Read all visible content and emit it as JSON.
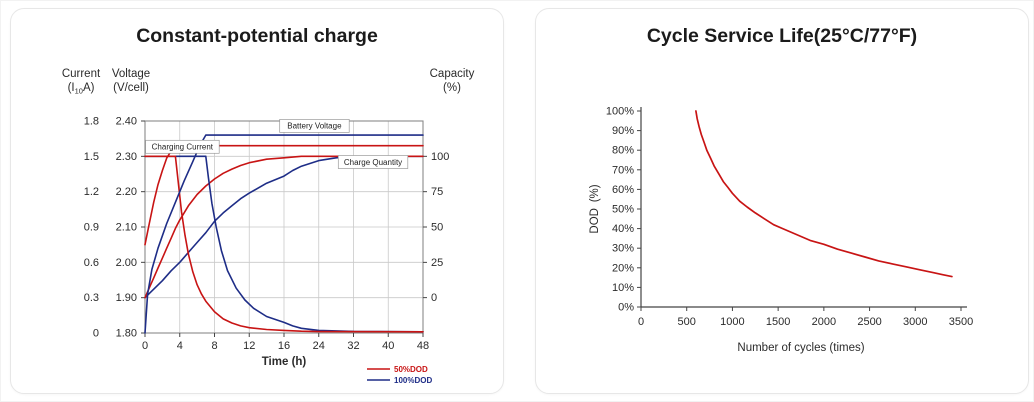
{
  "colors": {
    "red": "#c81414",
    "blue": "#1e2d87",
    "grid": "#c9c9c9",
    "frame": "#8a8a8a",
    "axis": "#444444",
    "tick_text": "#2b2b2b",
    "title_text": "#1b1b1b",
    "annotation_text": "#222222",
    "card_border": "#e7e7e7"
  },
  "chart_data": [
    {
      "type": "line",
      "title": "Constant-potential charge",
      "xlabel": "Time (h)",
      "x_scale": "piecewise-equal-spacing-between-ticks",
      "x_ticks": [
        0,
        4,
        8,
        12,
        16,
        24,
        32,
        40,
        48
      ],
      "x_tick_labels": [
        "0",
        "4",
        "8",
        "12",
        "16",
        "24",
        "32",
        "40",
        "48"
      ],
      "axes": {
        "current": {
          "name_line1": "Current",
          "name_line2_pre": "(I",
          "name_line2_sub": "10",
          "name_line2_post": "A)",
          "tick_labels": [
            "1.8",
            "1.5",
            "1.2",
            "0.9",
            "0.6",
            "0.3",
            "0"
          ],
          "min": 0,
          "max": 1.8,
          "frac_min": 0,
          "frac_max": 1
        },
        "voltage": {
          "name_line1": "Voltage",
          "name_line2": "(V/cell)",
          "tick_labels": [
            "2.40",
            "2.30",
            "2.20",
            "2.10",
            "2.00",
            "1.90",
            "1.80"
          ],
          "min": 1.8,
          "max": 2.4,
          "frac_min": 0,
          "frac_max": 1
        },
        "capacity": {
          "name_line1": "Capacity",
          "name_line2": "(%)",
          "tick_labels": [
            "100",
            "75",
            "50",
            "25",
            "0"
          ],
          "min": 0,
          "max": 100,
          "frac_min": 0.1667,
          "frac_max": 0.8333
        }
      },
      "series": [
        {
          "name": "100%DOD charge quantity",
          "axis": "capacity",
          "color": "blue",
          "points": [
            [
              0,
              0
            ],
            [
              1,
              6
            ],
            [
              2,
              12
            ],
            [
              3,
              19
            ],
            [
              4,
              25
            ],
            [
              5,
              32
            ],
            [
              6,
              39
            ],
            [
              7,
              46
            ],
            [
              8,
              54
            ],
            [
              9,
              60
            ],
            [
              10,
              65
            ],
            [
              11,
              70
            ],
            [
              12,
              74
            ],
            [
              14,
              81
            ],
            [
              16,
              86
            ],
            [
              18,
              90
            ],
            [
              20,
              93
            ],
            [
              24,
              97
            ],
            [
              28,
              99
            ],
            [
              32,
              100
            ],
            [
              48,
              100
            ]
          ]
        },
        {
          "name": "50%DOD charge quantity",
          "axis": "capacity",
          "color": "red",
          "points": [
            [
              0,
              0
            ],
            [
              0.5,
              7
            ],
            [
              1,
              14
            ],
            [
              1.5,
              21
            ],
            [
              2,
              28
            ],
            [
              2.5,
              35
            ],
            [
              3,
              42
            ],
            [
              3.5,
              49
            ],
            [
              4,
              55
            ],
            [
              4.5,
              60
            ],
            [
              5,
              65
            ],
            [
              6,
              73
            ],
            [
              7,
              79
            ],
            [
              8,
              84
            ],
            [
              9,
              88
            ],
            [
              10,
              91
            ],
            [
              11,
              93.5
            ],
            [
              12,
              95.5
            ],
            [
              14,
              98
            ],
            [
              16,
              99
            ],
            [
              20,
              100
            ],
            [
              48,
              100
            ]
          ]
        },
        {
          "name": "100%DOD charging current",
          "axis": "current",
          "color": "blue",
          "points": [
            [
              0,
              1.5
            ],
            [
              7,
              1.5
            ],
            [
              7.3,
              1.32
            ],
            [
              7.7,
              1.1
            ],
            [
              8.2,
              0.9
            ],
            [
              8.8,
              0.7
            ],
            [
              9.5,
              0.53
            ],
            [
              10.5,
              0.38
            ],
            [
              11.5,
              0.28
            ],
            [
              12.5,
              0.21
            ],
            [
              14,
              0.14
            ],
            [
              16,
              0.09
            ],
            [
              18,
              0.06
            ],
            [
              20,
              0.04
            ],
            [
              24,
              0.022
            ],
            [
              32,
              0.014
            ],
            [
              48,
              0.01
            ]
          ]
        },
        {
          "name": "50%DOD charging current",
          "axis": "current",
          "color": "red",
          "points": [
            [
              0,
              1.5
            ],
            [
              3.5,
              1.5
            ],
            [
              3.8,
              1.3
            ],
            [
              4.2,
              1.03
            ],
            [
              4.6,
              0.83
            ],
            [
              5,
              0.67
            ],
            [
              5.5,
              0.52
            ],
            [
              6,
              0.41
            ],
            [
              6.5,
              0.33
            ],
            [
              7,
              0.27
            ],
            [
              8,
              0.18
            ],
            [
              9,
              0.12
            ],
            [
              10,
              0.085
            ],
            [
              11,
              0.06
            ],
            [
              12,
              0.045
            ],
            [
              14,
              0.03
            ],
            [
              16,
              0.022
            ],
            [
              20,
              0.015
            ],
            [
              24,
              0.012
            ],
            [
              48,
              0.01
            ]
          ]
        },
        {
          "name": "100%DOD battery voltage",
          "axis": "voltage",
          "color": "blue",
          "points": [
            [
              0,
              1.8
            ],
            [
              0.3,
              1.91
            ],
            [
              0.8,
              1.98
            ],
            [
              1.5,
              2.04
            ],
            [
              2.5,
              2.11
            ],
            [
              3.5,
              2.17
            ],
            [
              4.5,
              2.23
            ],
            [
              5.5,
              2.285
            ],
            [
              6.3,
              2.33
            ],
            [
              7,
              2.36
            ],
            [
              48,
              2.36
            ]
          ]
        },
        {
          "name": "50%DOD battery voltage",
          "axis": "voltage",
          "color": "red",
          "points": [
            [
              0,
              2.05
            ],
            [
              0.5,
              2.11
            ],
            [
              1,
              2.17
            ],
            [
              1.5,
              2.22
            ],
            [
              2,
              2.26
            ],
            [
              2.5,
              2.295
            ],
            [
              3,
              2.315
            ],
            [
              3.5,
              2.33
            ],
            [
              48,
              2.33
            ]
          ]
        }
      ],
      "annotations": [
        {
          "text": "Charging Current",
          "t": 4.3,
          "axis": "voltage",
          "value": 2.327,
          "boxed": true
        },
        {
          "text": "Battery Voltage",
          "t": 23,
          "axis": "voltage",
          "value": 2.386,
          "boxed": true
        },
        {
          "text": "Charge Quantity",
          "t": 36.5,
          "axis": "voltage",
          "value": 2.284,
          "boxed": true
        }
      ],
      "legend": [
        {
          "label": "50%DOD",
          "color": "red"
        },
        {
          "label": "100%DOD",
          "color": "blue"
        }
      ]
    },
    {
      "type": "line",
      "title": "Cycle Service Life(25°C/77°F)",
      "xlabel": "Number of cycles (times)",
      "ylabel": "DOD (%)",
      "xlim": [
        0,
        3500
      ],
      "ylim": [
        0,
        100
      ],
      "x_tick_labels": [
        "0",
        "500",
        "1000",
        "1500",
        "2000",
        "2500",
        "3000",
        "3500"
      ],
      "y_tick_labels": [
        "100%",
        "90%",
        "80%",
        "70%",
        "60%",
        "50%",
        "40%",
        "30%",
        "20%",
        "10%",
        "0%"
      ],
      "series": [
        {
          "name": "cycle life vs DOD",
          "color": "red",
          "points": [
            [
              600,
              100
            ],
            [
              615,
              96
            ],
            [
              635,
              92
            ],
            [
              660,
              88
            ],
            [
              690,
              84
            ],
            [
              720,
              80
            ],
            [
              760,
              76
            ],
            [
              800,
              72
            ],
            [
              850,
              68
            ],
            [
              900,
              64
            ],
            [
              950,
              61
            ],
            [
              1000,
              58
            ],
            [
              1080,
              54
            ],
            [
              1160,
              51
            ],
            [
              1250,
              48
            ],
            [
              1350,
              45
            ],
            [
              1450,
              42
            ],
            [
              1550,
              40
            ],
            [
              1700,
              37
            ],
            [
              1850,
              34
            ],
            [
              2000,
              32
            ],
            [
              2150,
              29.5
            ],
            [
              2300,
              27.5
            ],
            [
              2450,
              25.5
            ],
            [
              2600,
              23.5
            ],
            [
              2750,
              22
            ],
            [
              2900,
              20.5
            ],
            [
              3050,
              19
            ],
            [
              3200,
              17.5
            ],
            [
              3300,
              16.5
            ],
            [
              3400,
              15.5
            ]
          ]
        }
      ]
    }
  ]
}
